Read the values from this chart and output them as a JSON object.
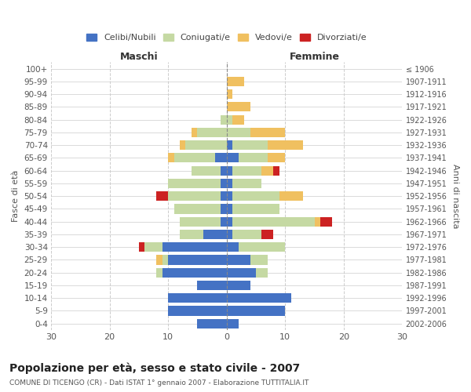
{
  "age_groups": [
    "100+",
    "95-99",
    "90-94",
    "85-89",
    "80-84",
    "75-79",
    "70-74",
    "65-69",
    "60-64",
    "55-59",
    "50-54",
    "45-49",
    "40-44",
    "35-39",
    "30-34",
    "25-29",
    "20-24",
    "15-19",
    "10-14",
    "5-9",
    "0-4"
  ],
  "birth_years": [
    "≤ 1906",
    "1907-1911",
    "1912-1916",
    "1917-1921",
    "1922-1926",
    "1927-1931",
    "1932-1936",
    "1937-1941",
    "1942-1946",
    "1947-1951",
    "1952-1956",
    "1957-1961",
    "1962-1966",
    "1967-1971",
    "1972-1976",
    "1977-1981",
    "1982-1986",
    "1987-1991",
    "1992-1996",
    "1997-2001",
    "2002-2006"
  ],
  "male": {
    "celibi": [
      0,
      0,
      0,
      0,
      0,
      0,
      0,
      2,
      1,
      1,
      1,
      1,
      1,
      4,
      11,
      10,
      11,
      5,
      10,
      10,
      5
    ],
    "coniugati": [
      0,
      0,
      0,
      0,
      1,
      5,
      7,
      7,
      5,
      9,
      9,
      8,
      7,
      4,
      3,
      1,
      1,
      0,
      0,
      0,
      0
    ],
    "vedovi": [
      0,
      0,
      0,
      0,
      0,
      1,
      1,
      1,
      0,
      0,
      0,
      0,
      0,
      0,
      0,
      1,
      0,
      0,
      0,
      0,
      0
    ],
    "divorziati": [
      0,
      0,
      0,
      0,
      0,
      0,
      0,
      0,
      0,
      0,
      2,
      0,
      0,
      0,
      1,
      0,
      0,
      0,
      0,
      0,
      0
    ]
  },
  "female": {
    "nubili": [
      0,
      0,
      0,
      0,
      0,
      0,
      1,
      2,
      1,
      1,
      1,
      1,
      1,
      1,
      2,
      4,
      5,
      4,
      11,
      10,
      2
    ],
    "coniugate": [
      0,
      0,
      0,
      0,
      1,
      4,
      6,
      5,
      5,
      5,
      8,
      8,
      14,
      5,
      8,
      3,
      2,
      0,
      0,
      0,
      0
    ],
    "vedove": [
      0,
      3,
      1,
      4,
      2,
      6,
      6,
      3,
      2,
      0,
      4,
      0,
      1,
      0,
      0,
      0,
      0,
      0,
      0,
      0,
      0
    ],
    "divorziate": [
      0,
      0,
      0,
      0,
      0,
      0,
      0,
      0,
      1,
      0,
      0,
      0,
      2,
      2,
      0,
      0,
      0,
      0,
      0,
      0,
      0
    ]
  },
  "colors": {
    "celibi": "#4472C4",
    "coniugati": "#C5D9A3",
    "vedovi": "#F0C060",
    "divorziati": "#CC2222"
  },
  "xlim": 30,
  "title": "Popolazione per età, sesso e stato civile - 2007",
  "subtitle": "COMUNE DI TICENGO (CR) - Dati ISTAT 1° gennaio 2007 - Elaborazione TUTTITALIA.IT",
  "ylabel_left": "Fasce di età",
  "ylabel_right": "Anni di nascita",
  "xlabel_maschi": "Maschi",
  "xlabel_femmine": "Femmine"
}
